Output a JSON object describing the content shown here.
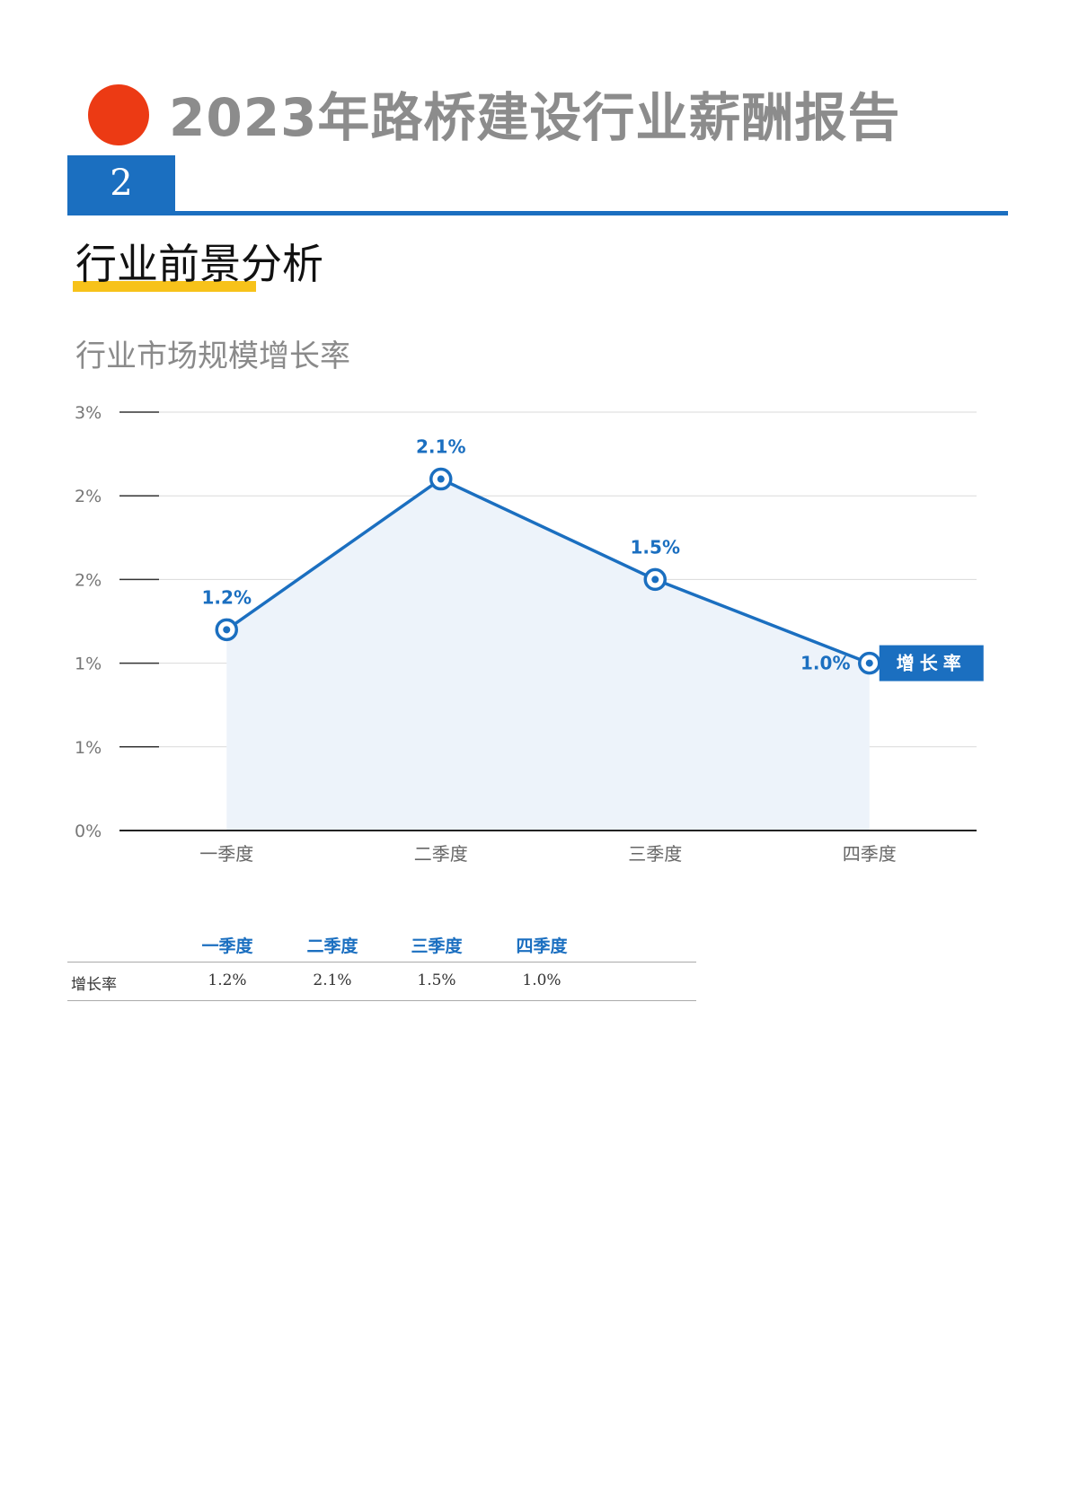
{
  "header": {
    "title": "2023年路桥建设行业薪酬报告",
    "section_number": "2",
    "subtitle": "行业前景分析",
    "accent_red": "#ec3a14",
    "accent_blue": "#1b6fc0",
    "accent_yellow": "#f7c21a"
  },
  "chart_title": "行业市场规模增长率",
  "chart_data": {
    "type": "area",
    "categories": [
      "一季度",
      "二季度",
      "三季度",
      "四季度"
    ],
    "series": [
      {
        "name": "增长率",
        "values": [
          1.2,
          2.1,
          1.5,
          1.0
        ],
        "labels": [
          "1.2%",
          "2.1%",
          "1.5%",
          "1.0%"
        ]
      }
    ],
    "y_tick_labels": [
      "0%",
      "1%",
      "1%",
      "2%",
      "2%",
      "3%"
    ],
    "ylim": [
      0,
      2.5
    ],
    "grid": true,
    "legend": "right-end-label",
    "colors": {
      "line": "#1b6fc0",
      "fill": "#edf3fa",
      "grid": "#d9d9d9",
      "axis": "#222222"
    }
  },
  "table": {
    "headers": [
      "一季度",
      "二季度",
      "三季度",
      "四季度"
    ],
    "row_label": "增长率",
    "values": [
      "1.2%",
      "2.1%",
      "1.5%",
      "1.0%"
    ]
  }
}
